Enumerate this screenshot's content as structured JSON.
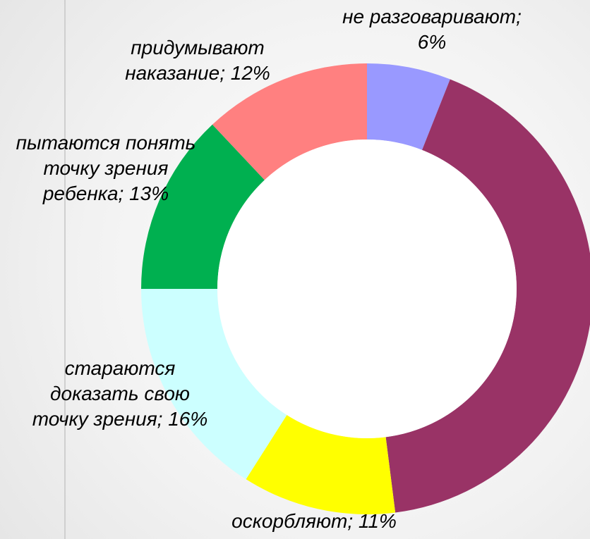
{
  "chart_data": {
    "type": "donut",
    "categories": [
      "не разговаривают;",
      null,
      "оскорбляют;",
      "стараются доказать свою точку зрения;",
      "пытаются понять точку зрения ребенка;",
      "придумывают наказание;"
    ],
    "values": [
      6,
      42,
      11,
      16,
      13,
      12
    ],
    "value_labels": [
      "6%",
      null,
      "11%",
      "16%",
      "13%",
      "12%"
    ],
    "colors": [
      "#9999ff",
      "#993366",
      "#ffff00",
      "#ccffff",
      "#00b050",
      "#ff8080"
    ]
  }
}
